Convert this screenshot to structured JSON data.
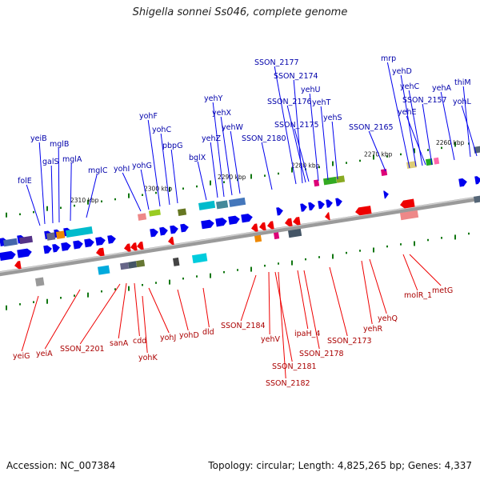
{
  "title": "Shigella sonnei Ss046, complete genome",
  "footer": {
    "accession": "Accession: NC_007384",
    "summary": "Topology: circular; Length: 4,825,265 bp; Genes: 4,337"
  },
  "colors": {
    "forward": "#0000ee",
    "reverse": "#ee0000",
    "backbone": "#888888",
    "tick": "#117711"
  },
  "kbp_labels": [
    "2310 kbp",
    "2300 kbp",
    "2290 kbp",
    "2280 kbp",
    "2270 kbp",
    "2260 kbp"
  ],
  "top_genes": [
    "folE",
    "yeiB",
    "galS",
    "mglB",
    "mglA",
    "mglC",
    "yohI",
    "yohG",
    "yohF",
    "yohC",
    "pbpG",
    "bglX",
    "yehZ",
    "yehY",
    "yehX",
    "yehW",
    "SSON_2180",
    "SSON_2177",
    "SSON_2174",
    "SSON_2176",
    "SSON_2175",
    "yehU",
    "yehT",
    "yehS",
    "SSON_2165",
    "mrp",
    "yehD",
    "yehC",
    "yehE",
    "SSON_2157",
    "yehA",
    "thiM",
    "yohL"
  ],
  "bottom_genes": [
    "yeiG",
    "yeiA",
    "SSON_2201",
    "sanA",
    "cdd",
    "yohK",
    "yohJ",
    "yohD",
    "dld",
    "SSON_2184",
    "yehV",
    "SSON_2181",
    "SSON_2182",
    "ipaH_4",
    "SSON_2178",
    "SSON_2173",
    "yehR",
    "yehQ",
    "molR_1",
    "metG"
  ]
}
